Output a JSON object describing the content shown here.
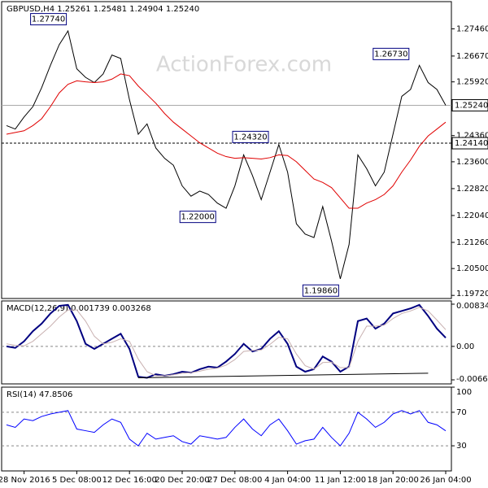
{
  "chart_data": [
    {
      "type": "line",
      "title": "GBPUSD,H4  1.25261 1.25481 1.24904 1.25240",
      "watermark": "ActionForex.com",
      "ylim": [
        1.1963,
        1.2825
      ],
      "yticks": [
        {
          "value": 1.2746,
          "label": "1.27460"
        },
        {
          "value": 1.2667,
          "label": "1.26670"
        },
        {
          "value": 1.2592,
          "label": "1.25920"
        },
        {
          "value": 1.2436,
          "label": "1.24360"
        },
        {
          "value": 1.236,
          "label": "1.23600"
        },
        {
          "value": 1.2282,
          "label": "1.22820"
        },
        {
          "value": 1.2204,
          "label": "1.22040"
        },
        {
          "value": 1.2126,
          "label": "1.21260"
        },
        {
          "value": 1.205,
          "label": "1.20500"
        },
        {
          "value": 1.1972,
          "label": "1.19720"
        }
      ],
      "series": [
        {
          "color": "#000000",
          "values": [
            1.2465,
            1.2455,
            1.249,
            1.252,
            1.2575,
            1.264,
            1.27,
            1.274,
            1.263,
            1.2605,
            1.259,
            1.2615,
            1.267,
            1.266,
            1.254,
            1.244,
            1.247,
            1.24,
            1.237,
            1.235,
            1.229,
            1.226,
            1.2275,
            1.2265,
            1.224,
            1.2225,
            1.229,
            1.238,
            1.232,
            1.225,
            1.233,
            1.241,
            1.233,
            1.218,
            1.215,
            1.214,
            1.223,
            1.213,
            1.202,
            1.212,
            1.238,
            1.234,
            1.229,
            1.233,
            1.244,
            1.255,
            1.257,
            1.264,
            1.259,
            1.257,
            1.2524
          ]
        },
        {
          "color": "#e00000",
          "values": [
            1.244,
            1.2445,
            1.245,
            1.2465,
            1.2485,
            1.252,
            1.256,
            1.2585,
            1.2595,
            1.2592,
            1.259,
            1.2592,
            1.26,
            1.2615,
            1.261,
            1.258,
            1.2555,
            1.253,
            1.25,
            1.2475,
            1.2455,
            1.2435,
            1.2415,
            1.24,
            1.2385,
            1.2375,
            1.237,
            1.2372,
            1.237,
            1.2368,
            1.2372,
            1.238,
            1.2378,
            1.236,
            1.2335,
            1.231,
            1.23,
            1.2285,
            1.2255,
            1.2225,
            1.2225,
            1.224,
            1.225,
            1.2265,
            1.229,
            1.233,
            1.2365,
            1.2405,
            1.2435,
            1.2455,
            1.2475
          ]
        }
      ],
      "price_line": {
        "value": 1.2524,
        "label": "1.25240"
      },
      "level": {
        "value": 1.2414,
        "label": "1.24140"
      },
      "annotations": [
        {
          "value": 1.2774,
          "label": "1.27740",
          "index": 7
        },
        {
          "value": 1.2673,
          "label": "1.26730",
          "index": 46
        },
        {
          "value": 1.2432,
          "label": "1.24320",
          "index": 30
        },
        {
          "value": 1.22,
          "label": "1.22000",
          "index": 24
        },
        {
          "value": 1.1986,
          "label": "1.19860",
          "index": 38
        }
      ]
    },
    {
      "type": "line",
      "title": "MACD(12,26,9) 0.001739 0.003268",
      "ylim": [
        -0.00741,
        0.00898
      ],
      "yticks": [
        0.008341,
        {
          "value": 0,
          "label": "0.00"
        },
        -0.00661
      ],
      "levels": [
        0
      ],
      "series": [
        {
          "color": "#000080",
          "values": [
            0,
            -0.0003,
            0.001,
            0.003,
            0.0045,
            0.0065,
            0.008,
            0.0082,
            0.005,
            0.0005,
            -0.0005,
            0.0005,
            0.0015,
            0.0025,
            -0.0005,
            -0.006,
            -0.0062,
            -0.0055,
            -0.0058,
            -0.0055,
            -0.005,
            -0.0052,
            -0.0045,
            -0.004,
            -0.0042,
            -0.003,
            -0.0015,
            0.0005,
            -0.001,
            -0.0005,
            0.0015,
            0.003,
            0.0005,
            -0.004,
            -0.005,
            -0.0045,
            -0.002,
            -0.003,
            -0.005,
            -0.004,
            0.005,
            0.0055,
            0.0035,
            0.0045,
            0.0065,
            0.007,
            0.0075,
            0.0082,
            0.006,
            0.0035,
            0.0017
          ]
        },
        {
          "color": "#c8b0b0",
          "values": [
            0.0005,
            0.0002,
            0.0001,
            0.001,
            0.0025,
            0.004,
            0.0058,
            0.0072,
            0.0072,
            0.005,
            0.002,
            0.0005,
            0.0008,
            0.0015,
            0.001,
            -0.0025,
            -0.005,
            -0.0058,
            -0.0058,
            -0.0056,
            -0.0053,
            -0.0052,
            -0.0049,
            -0.0045,
            -0.0043,
            -0.0037,
            -0.0026,
            -0.001,
            -0.0008,
            -0.0007,
            0.0004,
            0.0018,
            0.0015,
            -0.0015,
            -0.0038,
            -0.0045,
            -0.0032,
            -0.0031,
            -0.0042,
            -0.0042,
            0.001,
            0.004,
            0.004,
            0.0042,
            0.0055,
            0.0065,
            0.007,
            0.0077,
            0.007,
            0.0052,
            0.0033
          ]
        }
      ],
      "trendline": {
        "color": "#000000",
        "x": [
          15,
          48
        ],
        "values": [
          -0.0062,
          -0.0053
        ]
      }
    },
    {
      "type": "line",
      "title": "RSI(14) 47.8506",
      "ylim": [
        0,
        100
      ],
      "yticks": [
        100,
        70,
        30
      ],
      "levels": [
        70,
        30
      ],
      "series": [
        {
          "color": "#0000ff",
          "values": [
            55,
            52,
            62,
            60,
            65,
            68,
            70,
            72,
            50,
            48,
            46,
            55,
            62,
            58,
            38,
            30,
            45,
            38,
            40,
            42,
            35,
            32,
            42,
            40,
            38,
            40,
            52,
            62,
            50,
            42,
            55,
            62,
            48,
            32,
            36,
            38,
            52,
            40,
            30,
            45,
            70,
            62,
            52,
            58,
            68,
            72,
            68,
            72,
            58,
            55,
            47.85
          ]
        }
      ],
      "categories": [
        null,
        null,
        "28 Nov 2016",
        null,
        null,
        null,
        null,
        null,
        "5 Dec 08:00",
        null,
        null,
        null,
        null,
        null,
        "12 Dec 16:00",
        null,
        null,
        null,
        null,
        null,
        "20 Dec 20:00",
        null,
        null,
        null,
        null,
        null,
        "27 Dec 08:00",
        null,
        null,
        null,
        null,
        null,
        "4 Jan 04:00",
        null,
        null,
        null,
        null,
        null,
        "11 Jan 12:00",
        null,
        null,
        null,
        null,
        null,
        "18 Jan 20:00",
        null,
        null,
        null,
        null,
        null,
        "26 Jan 04:00"
      ]
    }
  ]
}
